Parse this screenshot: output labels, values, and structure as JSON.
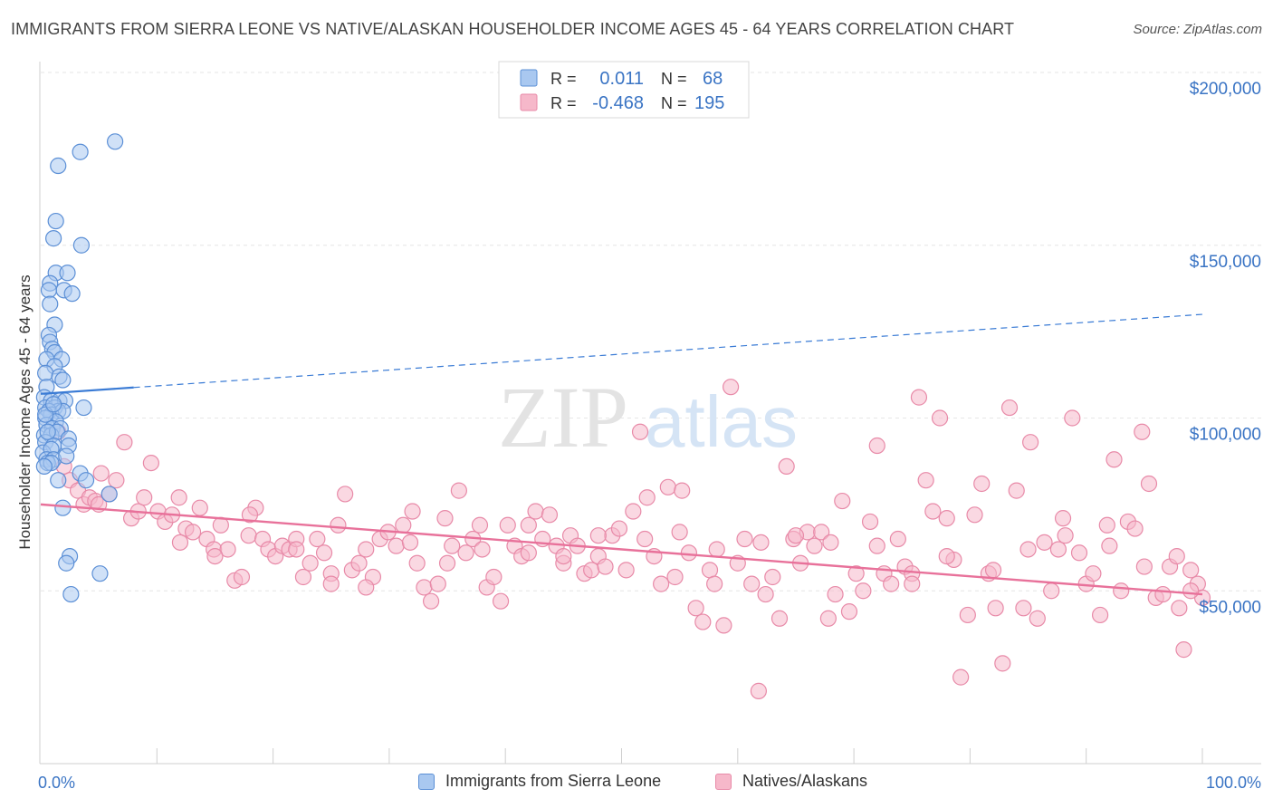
{
  "title": "IMMIGRANTS FROM SIERRA LEONE VS NATIVE/ALASKAN HOUSEHOLDER INCOME AGES 45 - 64 YEARS CORRELATION CHART",
  "source": "Source: ZipAtlas.com",
  "watermark": {
    "zip": "ZIP",
    "atlas": "atlas"
  },
  "colors": {
    "blue_fill": "#a9c8f0",
    "blue_stroke": "#5b8fd6",
    "blue_line": "#3a7bd5",
    "pink_fill": "#f6b8ca",
    "pink_stroke": "#e88aa8",
    "pink_line": "#e8719a",
    "axis_label": "#3a74c4",
    "grid": "#e6e6e6"
  },
  "legend_top": {
    "rows": [
      {
        "r_label": "R =",
        "r_value": "0.011",
        "n_label": "N =",
        "n_value": "68"
      },
      {
        "r_label": "R =",
        "r_value": "-0.468",
        "n_label": "N =",
        "n_value": "195"
      }
    ]
  },
  "legend_bottom": [
    "Immigrants from Sierra Leone",
    "Natives/Alaskans"
  ],
  "chart_data": {
    "type": "scatter",
    "ylabel": "Householder Income Ages 45 - 64 years",
    "x_tick_labels": [
      "0.0%",
      "100.0%"
    ],
    "y_tick_labels": [
      "$200,000",
      "$150,000",
      "$100,000",
      "$50,000"
    ],
    "xlim": [
      0,
      100
    ],
    "ylim": [
      0,
      200000
    ],
    "grid": true,
    "legend_position": "top-center",
    "series": [
      {
        "name": "Immigrants from Sierra Leone",
        "color": "blue",
        "trend": {
          "x0": 0,
          "y0": 107000,
          "x_solid_end": 8,
          "x1": 100,
          "y1": 130000
        },
        "points": [
          [
            6.4,
            180000
          ],
          [
            3.4,
            177000
          ],
          [
            1.5,
            173000
          ],
          [
            1.3,
            157000
          ],
          [
            1.1,
            152000
          ],
          [
            3.5,
            150000
          ],
          [
            1.3,
            142000
          ],
          [
            2.3,
            142000
          ],
          [
            0.8,
            139000
          ],
          [
            0.7,
            137000
          ],
          [
            2.0,
            137000
          ],
          [
            2.7,
            136000
          ],
          [
            0.8,
            133000
          ],
          [
            1.2,
            127000
          ],
          [
            0.7,
            124000
          ],
          [
            0.8,
            122000
          ],
          [
            1.0,
            120000
          ],
          [
            1.2,
            119000
          ],
          [
            0.5,
            117000
          ],
          [
            1.8,
            117000
          ],
          [
            1.2,
            115000
          ],
          [
            0.4,
            113000
          ],
          [
            1.6,
            112000
          ],
          [
            1.9,
            111000
          ],
          [
            0.5,
            109000
          ],
          [
            0.3,
            106000
          ],
          [
            0.9,
            105000
          ],
          [
            1.6,
            105000
          ],
          [
            2.1,
            105000
          ],
          [
            0.4,
            103000
          ],
          [
            1.2,
            103000
          ],
          [
            1.5,
            102000
          ],
          [
            3.7,
            103000
          ],
          [
            0.7,
            102000
          ],
          [
            0.9,
            101000
          ],
          [
            1.9,
            102000
          ],
          [
            0.4,
            100000
          ],
          [
            1.3,
            99000
          ],
          [
            0.5,
            98000
          ],
          [
            1.0,
            97000
          ],
          [
            1.7,
            97000
          ],
          [
            0.3,
            95000
          ],
          [
            0.9,
            95000
          ],
          [
            1.4,
            96000
          ],
          [
            2.4,
            94000
          ],
          [
            0.4,
            93000
          ],
          [
            1.1,
            92000
          ],
          [
            2.4,
            92000
          ],
          [
            0.2,
            90000
          ],
          [
            0.9,
            91000
          ],
          [
            0.5,
            88000
          ],
          [
            1.1,
            88000
          ],
          [
            0.6,
            87000
          ],
          [
            0.9,
            87000
          ],
          [
            0.3,
            86000
          ],
          [
            3.4,
            84000
          ],
          [
            1.5,
            82000
          ],
          [
            3.9,
            82000
          ],
          [
            5.9,
            78000
          ],
          [
            1.9,
            74000
          ],
          [
            2.5,
            60000
          ],
          [
            2.2,
            58000
          ],
          [
            5.1,
            55000
          ],
          [
            2.6,
            49000
          ],
          [
            0.4,
            101000
          ],
          [
            1.1,
            104000
          ],
          [
            0.6,
            96000
          ],
          [
            2.2,
            89000
          ]
        ]
      },
      {
        "name": "Natives/Alaskans",
        "color": "pink",
        "trend": {
          "x0": 0,
          "y0": 75000,
          "x1": 100,
          "y1": 49000
        },
        "points": [
          [
            1.5,
            96000
          ],
          [
            2.0,
            86000
          ],
          [
            2.5,
            82000
          ],
          [
            3.2,
            79000
          ],
          [
            3.7,
            75000
          ],
          [
            4.2,
            77000
          ],
          [
            4.7,
            76000
          ],
          [
            5.2,
            84000
          ],
          [
            5.9,
            78000
          ],
          [
            6.5,
            82000
          ],
          [
            7.2,
            93000
          ],
          [
            7.8,
            71000
          ],
          [
            8.4,
            73000
          ],
          [
            8.9,
            77000
          ],
          [
            9.5,
            87000
          ],
          [
            10.1,
            73000
          ],
          [
            10.7,
            70000
          ],
          [
            11.3,
            72000
          ],
          [
            11.9,
            77000
          ],
          [
            12.5,
            68000
          ],
          [
            13.1,
            67000
          ],
          [
            13.7,
            74000
          ],
          [
            14.3,
            65000
          ],
          [
            14.9,
            62000
          ],
          [
            15.5,
            69000
          ],
          [
            16.1,
            62000
          ],
          [
            16.7,
            53000
          ],
          [
            17.3,
            54000
          ],
          [
            17.9,
            66000
          ],
          [
            18.5,
            74000
          ],
          [
            19.1,
            65000
          ],
          [
            19.6,
            62000
          ],
          [
            20.2,
            60000
          ],
          [
            20.8,
            63000
          ],
          [
            21.4,
            62000
          ],
          [
            22.0,
            65000
          ],
          [
            22.6,
            54000
          ],
          [
            23.2,
            58000
          ],
          [
            23.8,
            65000
          ],
          [
            24.4,
            61000
          ],
          [
            25.0,
            55000
          ],
          [
            25.6,
            69000
          ],
          [
            26.2,
            78000
          ],
          [
            26.8,
            56000
          ],
          [
            27.4,
            58000
          ],
          [
            28.0,
            62000
          ],
          [
            28.6,
            54000
          ],
          [
            29.2,
            65000
          ],
          [
            29.9,
            67000
          ],
          [
            30.6,
            63000
          ],
          [
            31.2,
            69000
          ],
          [
            31.8,
            64000
          ],
          [
            32.4,
            58000
          ],
          [
            33.0,
            51000
          ],
          [
            33.6,
            47000
          ],
          [
            34.2,
            52000
          ],
          [
            34.8,
            71000
          ],
          [
            35.4,
            63000
          ],
          [
            36.0,
            79000
          ],
          [
            36.6,
            61000
          ],
          [
            37.2,
            65000
          ],
          [
            37.8,
            69000
          ],
          [
            38.4,
            51000
          ],
          [
            39.0,
            54000
          ],
          [
            39.6,
            47000
          ],
          [
            40.2,
            69000
          ],
          [
            40.8,
            63000
          ],
          [
            41.4,
            60000
          ],
          [
            42.0,
            69000
          ],
          [
            42.6,
            73000
          ],
          [
            43.2,
            65000
          ],
          [
            43.8,
            72000
          ],
          [
            44.4,
            63000
          ],
          [
            45.0,
            58000
          ],
          [
            45.6,
            66000
          ],
          [
            46.2,
            63000
          ],
          [
            46.8,
            55000
          ],
          [
            47.4,
            56000
          ],
          [
            48.0,
            60000
          ],
          [
            48.6,
            57000
          ],
          [
            49.2,
            66000
          ],
          [
            49.8,
            68000
          ],
          [
            50.4,
            56000
          ],
          [
            51.0,
            73000
          ],
          [
            51.6,
            96000
          ],
          [
            52.2,
            77000
          ],
          [
            52.8,
            60000
          ],
          [
            53.4,
            52000
          ],
          [
            54.0,
            80000
          ],
          [
            54.6,
            54000
          ],
          [
            55.2,
            79000
          ],
          [
            55.8,
            61000
          ],
          [
            56.4,
            45000
          ],
          [
            57.0,
            41000
          ],
          [
            57.6,
            56000
          ],
          [
            58.2,
            62000
          ],
          [
            58.8,
            40000
          ],
          [
            59.4,
            109000
          ],
          [
            60.0,
            58000
          ],
          [
            60.6,
            65000
          ],
          [
            61.2,
            52000
          ],
          [
            61.8,
            21000
          ],
          [
            62.4,
            49000
          ],
          [
            63.0,
            54000
          ],
          [
            63.6,
            42000
          ],
          [
            64.2,
            86000
          ],
          [
            64.8,
            65000
          ],
          [
            65.4,
            58000
          ],
          [
            66.0,
            67000
          ],
          [
            66.6,
            63000
          ],
          [
            67.2,
            67000
          ],
          [
            67.8,
            42000
          ],
          [
            68.4,
            49000
          ],
          [
            69.0,
            76000
          ],
          [
            69.6,
            44000
          ],
          [
            70.2,
            55000
          ],
          [
            70.8,
            50000
          ],
          [
            71.4,
            70000
          ],
          [
            72.0,
            92000
          ],
          [
            72.6,
            55000
          ],
          [
            73.2,
            52000
          ],
          [
            73.8,
            65000
          ],
          [
            74.4,
            57000
          ],
          [
            75.0,
            55000
          ],
          [
            75.6,
            106000
          ],
          [
            76.2,
            82000
          ],
          [
            76.8,
            73000
          ],
          [
            77.4,
            100000
          ],
          [
            78.0,
            71000
          ],
          [
            78.6,
            59000
          ],
          [
            79.2,
            25000
          ],
          [
            79.8,
            43000
          ],
          [
            80.4,
            72000
          ],
          [
            81.0,
            81000
          ],
          [
            81.6,
            55000
          ],
          [
            82.2,
            45000
          ],
          [
            82.8,
            29000
          ],
          [
            83.4,
            103000
          ],
          [
            84.0,
            79000
          ],
          [
            84.6,
            45000
          ],
          [
            85.2,
            93000
          ],
          [
            85.8,
            42000
          ],
          [
            86.4,
            64000
          ],
          [
            87.0,
            50000
          ],
          [
            87.6,
            62000
          ],
          [
            88.2,
            66000
          ],
          [
            88.8,
            100000
          ],
          [
            89.4,
            61000
          ],
          [
            90.0,
            52000
          ],
          [
            90.6,
            55000
          ],
          [
            91.2,
            43000
          ],
          [
            91.8,
            69000
          ],
          [
            92.4,
            88000
          ],
          [
            93.0,
            50000
          ],
          [
            93.6,
            70000
          ],
          [
            94.2,
            68000
          ],
          [
            94.8,
            96000
          ],
          [
            95.4,
            81000
          ],
          [
            96.0,
            48000
          ],
          [
            96.6,
            49000
          ],
          [
            97.2,
            57000
          ],
          [
            97.8,
            60000
          ],
          [
            98.4,
            33000
          ],
          [
            99.0,
            56000
          ],
          [
            99.6,
            52000
          ],
          [
            100.0,
            48000
          ],
          [
            12.0,
            64000
          ],
          [
            22.0,
            62000
          ],
          [
            32.0,
            73000
          ],
          [
            42.0,
            61000
          ],
          [
            52.0,
            65000
          ],
          [
            62.0,
            64000
          ],
          [
            72.0,
            63000
          ],
          [
            82.0,
            56000
          ],
          [
            92.0,
            63000
          ],
          [
            15.0,
            60000
          ],
          [
            25.0,
            52000
          ],
          [
            35.0,
            58000
          ],
          [
            45.0,
            60000
          ],
          [
            55.0,
            67000
          ],
          [
            65.0,
            66000
          ],
          [
            75.0,
            52000
          ],
          [
            85.0,
            62000
          ],
          [
            95.0,
            57000
          ],
          [
            99.0,
            50000
          ],
          [
            5.0,
            75000
          ],
          [
            18.0,
            72000
          ],
          [
            28.0,
            51000
          ],
          [
            38.0,
            62000
          ],
          [
            48.0,
            66000
          ],
          [
            58.0,
            52000
          ],
          [
            68.0,
            64000
          ],
          [
            78.0,
            60000
          ],
          [
            88.0,
            71000
          ],
          [
            98.0,
            45000
          ]
        ]
      }
    ]
  }
}
